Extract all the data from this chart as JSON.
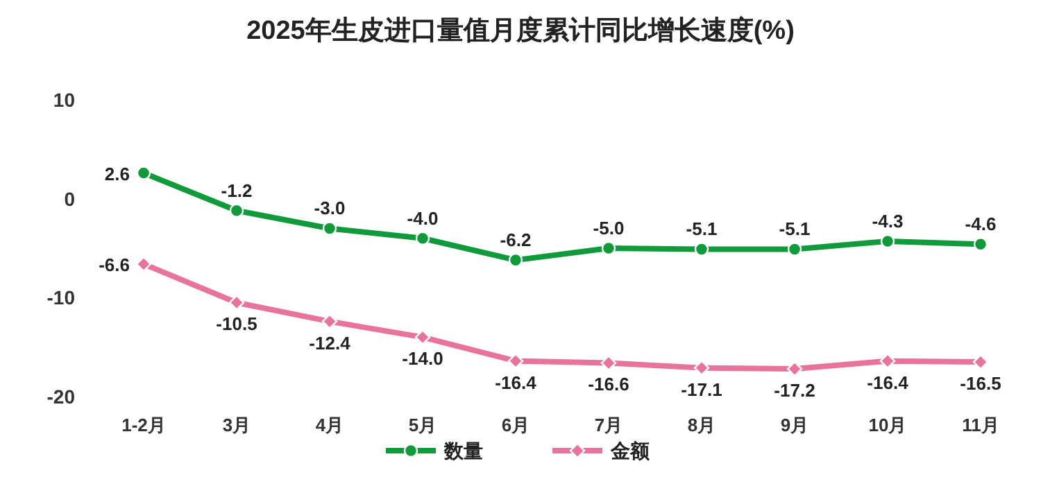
{
  "chart_data": {
    "type": "line",
    "title": "2025年生皮进口量值月度累计同比增长速度(%)",
    "categories": [
      "1-2月",
      "3月",
      "4月",
      "5月",
      "6月",
      "7月",
      "8月",
      "9月",
      "10月",
      "11月"
    ],
    "series": [
      {
        "name": "数量",
        "color": "#109a3c",
        "marker": "circle",
        "values": [
          2.6,
          -1.2,
          -3.0,
          -4.0,
          -6.2,
          -5.0,
          -5.1,
          -5.1,
          -4.3,
          -4.6
        ],
        "value_labels": [
          "2.6",
          "-1.2",
          "-3.0",
          "-4.0",
          "-6.2",
          "-5.0",
          "-5.1",
          "-5.1",
          "-4.3",
          "-4.6"
        ]
      },
      {
        "name": "金额",
        "color": "#e8739b",
        "marker": "diamond",
        "values": [
          -6.6,
          -10.5,
          -12.4,
          -14.0,
          -16.4,
          -16.6,
          -17.1,
          -17.2,
          -16.4,
          -16.5
        ],
        "value_labels": [
          "-6.6",
          "-10.5",
          "-12.4",
          "-14.0",
          "-16.4",
          "-16.6",
          "-17.1",
          "-17.2",
          "-16.4",
          "-16.5"
        ]
      }
    ],
    "ylim": [
      -20,
      10
    ],
    "yticks": [
      10,
      0,
      -10,
      -20
    ],
    "legend": "bottom"
  }
}
